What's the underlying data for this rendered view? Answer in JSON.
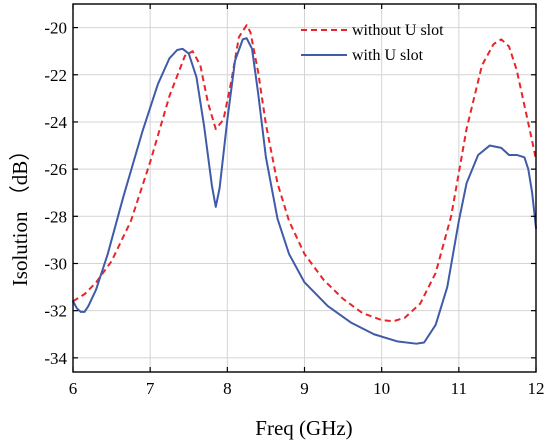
{
  "chart_data": {
    "type": "line",
    "xlabel": "Freq (GHz)",
    "ylabel": "Isolution （dB）",
    "xlim": [
      6,
      12
    ],
    "ylim": [
      -34.6,
      -19.0
    ],
    "x_ticks": [
      6,
      7,
      8,
      9,
      10,
      11,
      12
    ],
    "y_ticks": [
      -34,
      -32,
      -30,
      -28,
      -26,
      -24,
      -22,
      -20
    ],
    "grid": true,
    "legend_position": "top-right",
    "series": [
      {
        "name": "without U slot",
        "color": "#e8262a",
        "style": "dashed",
        "x": [
          6.0,
          6.15,
          6.3,
          6.5,
          6.75,
          7.0,
          7.25,
          7.45,
          7.55,
          7.65,
          7.75,
          7.85,
          7.95,
          8.05,
          8.15,
          8.25,
          8.3,
          8.4,
          8.5,
          8.65,
          8.8,
          9.0,
          9.25,
          9.5,
          9.75,
          10.0,
          10.15,
          10.3,
          10.5,
          10.7,
          10.9,
          11.1,
          11.3,
          11.45,
          11.55,
          11.65,
          11.75,
          11.85,
          11.95,
          12.0
        ],
        "y": [
          -31.6,
          -31.3,
          -30.8,
          -29.9,
          -28.2,
          -25.7,
          -22.9,
          -21.2,
          -21.0,
          -21.6,
          -23.2,
          -24.3,
          -23.9,
          -22.3,
          -20.4,
          -19.9,
          -20.2,
          -21.9,
          -24.1,
          -26.6,
          -28.2,
          -29.6,
          -30.7,
          -31.5,
          -32.1,
          -32.4,
          -32.45,
          -32.3,
          -31.7,
          -30.4,
          -28.0,
          -24.3,
          -21.6,
          -20.7,
          -20.5,
          -20.8,
          -21.8,
          -23.3,
          -24.8,
          -25.6
        ]
      },
      {
        "name": "with U slot",
        "color": "#3f5ba9",
        "style": "solid",
        "x": [
          6.0,
          6.05,
          6.1,
          6.15,
          6.2,
          6.3,
          6.45,
          6.65,
          6.9,
          7.1,
          7.25,
          7.35,
          7.42,
          7.5,
          7.6,
          7.7,
          7.8,
          7.85,
          7.9,
          8.0,
          8.1,
          8.2,
          8.25,
          8.32,
          8.4,
          8.5,
          8.65,
          8.8,
          9.0,
          9.3,
          9.6,
          9.9,
          10.2,
          10.45,
          10.55,
          10.7,
          10.85,
          11.0,
          11.1,
          11.25,
          11.4,
          11.55,
          11.65,
          11.75,
          11.85,
          11.9,
          11.95,
          12.0
        ],
        "y": [
          -31.6,
          -31.9,
          -32.05,
          -32.05,
          -31.8,
          -31.1,
          -29.6,
          -27.2,
          -24.4,
          -22.4,
          -21.3,
          -20.95,
          -20.9,
          -21.1,
          -22.1,
          -24.2,
          -26.7,
          -27.6,
          -26.8,
          -23.9,
          -21.4,
          -20.5,
          -20.45,
          -20.9,
          -22.8,
          -25.5,
          -28.1,
          -29.6,
          -30.8,
          -31.8,
          -32.5,
          -33.0,
          -33.3,
          -33.4,
          -33.35,
          -32.6,
          -31.0,
          -28.2,
          -26.6,
          -25.4,
          -25.0,
          -25.1,
          -25.4,
          -25.4,
          -25.5,
          -26.0,
          -27.0,
          -28.5
        ]
      }
    ]
  }
}
